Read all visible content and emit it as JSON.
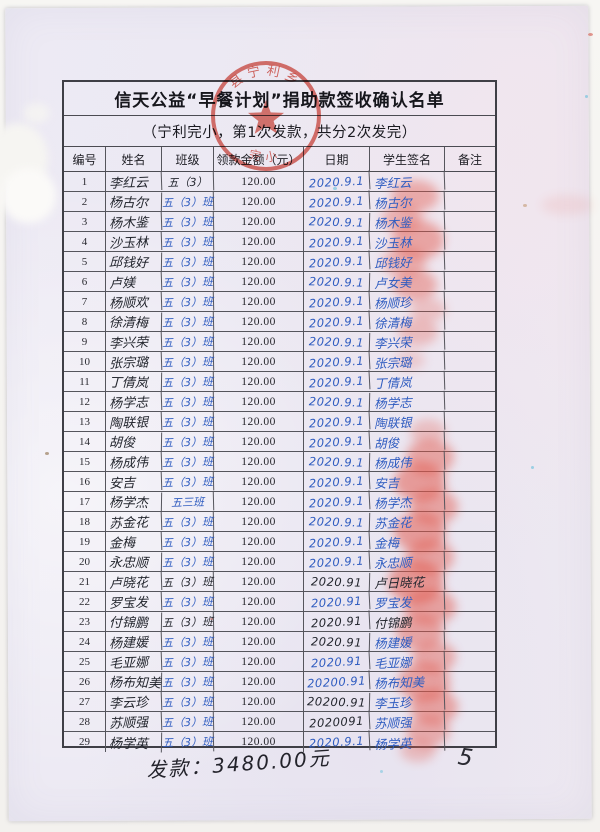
{
  "document": {
    "title": "信天公益“早餐计划”捐助款签收确认名单",
    "subtitle": "（宁利完小，第1次发款，共分2次发完）",
    "footer": {
      "total_handwritten": "发款：3480.00元",
      "page_number": "5"
    }
  },
  "stamp": {
    "arc_top": "县宁利乡",
    "arc_bottom": "完小"
  },
  "table": {
    "headers": [
      "编号",
      "姓名",
      "班级",
      "领款金额（元）",
      "日期",
      "学生签名",
      "备注"
    ],
    "rows": [
      {
        "no": "1",
        "name": "李红云",
        "cls": "五（3）",
        "amount": "120.00",
        "date": "2020.9.1",
        "sig": "李红云",
        "remark": "",
        "class_ink": "dark",
        "date_ink": "blue",
        "sig_ink": "blue"
      },
      {
        "no": "2",
        "name": "杨古尔",
        "cls": "五（3）班",
        "amount": "120.00",
        "date": "2020.9.1",
        "sig": "杨古尔",
        "remark": "",
        "class_ink": "blue",
        "date_ink": "blue",
        "sig_ink": "blue"
      },
      {
        "no": "3",
        "name": "杨木鉴",
        "cls": "五（3）班",
        "amount": "120.00",
        "date": "2020.9.1",
        "sig": "杨木鉴",
        "remark": "",
        "class_ink": "blue",
        "date_ink": "blue",
        "sig_ink": "blue"
      },
      {
        "no": "4",
        "name": "沙玉林",
        "cls": "五（3）班",
        "amount": "120.00",
        "date": "2020.9.1",
        "sig": "沙玉林",
        "remark": "",
        "class_ink": "blue",
        "date_ink": "blue",
        "sig_ink": "blue"
      },
      {
        "no": "5",
        "name": "邱钱好",
        "cls": "五（3）班",
        "amount": "120.00",
        "date": "2020.9.1",
        "sig": "邱钱好",
        "remark": "",
        "class_ink": "blue",
        "date_ink": "blue",
        "sig_ink": "blue"
      },
      {
        "no": "6",
        "name": "卢媄",
        "cls": "五（3）班",
        "amount": "120.00",
        "date": "2020.9.1",
        "sig": "卢女美",
        "remark": "",
        "class_ink": "blue",
        "date_ink": "blue",
        "sig_ink": "blue"
      },
      {
        "no": "7",
        "name": "杨顺欢",
        "cls": "五（3）班",
        "amount": "120.00",
        "date": "2020.9.1",
        "sig": "杨顺珍",
        "remark": "",
        "class_ink": "blue",
        "date_ink": "blue",
        "sig_ink": "blue"
      },
      {
        "no": "8",
        "name": "徐清梅",
        "cls": "五（3）班",
        "amount": "120.00",
        "date": "2020.9.1",
        "sig": "徐清梅",
        "remark": "",
        "class_ink": "blue",
        "date_ink": "blue",
        "sig_ink": "blue"
      },
      {
        "no": "9",
        "name": "李兴荣",
        "cls": "五（3）班",
        "amount": "120.00",
        "date": "2020.9.1",
        "sig": "李兴荣",
        "remark": "",
        "class_ink": "blue",
        "date_ink": "blue",
        "sig_ink": "blue"
      },
      {
        "no": "10",
        "name": "张宗璐",
        "cls": "五（3）班",
        "amount": "120.00",
        "date": "2020.9.1",
        "sig": "张宗璐",
        "remark": "",
        "class_ink": "blue",
        "date_ink": "blue",
        "sig_ink": "blue"
      },
      {
        "no": "11",
        "name": "丁倩岚",
        "cls": "五（3）班",
        "amount": "120.00",
        "date": "2020.9.1",
        "sig": "丁倩岚",
        "remark": "",
        "class_ink": "blue",
        "date_ink": "blue",
        "sig_ink": "blue"
      },
      {
        "no": "12",
        "name": "杨学志",
        "cls": "五（3）班",
        "amount": "120.00",
        "date": "2020.9.1",
        "sig": "杨学志",
        "remark": "",
        "class_ink": "blue",
        "date_ink": "blue",
        "sig_ink": "blue"
      },
      {
        "no": "13",
        "name": "陶联银",
        "cls": "五（3）班",
        "amount": "120.00",
        "date": "2020.9.1",
        "sig": "陶联银",
        "remark": "",
        "class_ink": "blue",
        "date_ink": "blue",
        "sig_ink": "blue"
      },
      {
        "no": "14",
        "name": "胡俊",
        "cls": "五（3）班",
        "amount": "120.00",
        "date": "2020.9.1",
        "sig": "胡俊",
        "remark": "",
        "class_ink": "blue",
        "date_ink": "blue",
        "sig_ink": "blue"
      },
      {
        "no": "15",
        "name": "杨成伟",
        "cls": "五（3）班",
        "amount": "120.00",
        "date": "2020.9.1",
        "sig": "杨成伟",
        "remark": "",
        "class_ink": "blue",
        "date_ink": "blue",
        "sig_ink": "blue"
      },
      {
        "no": "16",
        "name": "安吉",
        "cls": "五（3）班",
        "amount": "120.00",
        "date": "2020.9.1",
        "sig": "安吉",
        "remark": "",
        "class_ink": "blue",
        "date_ink": "blue",
        "sig_ink": "blue"
      },
      {
        "no": "17",
        "name": "杨学杰",
        "cls": "五三班",
        "amount": "120.00",
        "date": "2020.9.1",
        "sig": "杨学杰",
        "remark": "",
        "class_ink": "blue",
        "date_ink": "blue",
        "sig_ink": "blue"
      },
      {
        "no": "18",
        "name": "苏金花",
        "cls": "五（3）班",
        "amount": "120.00",
        "date": "2020.9.1",
        "sig": "苏金花",
        "remark": "",
        "class_ink": "blue",
        "date_ink": "blue",
        "sig_ink": "blue"
      },
      {
        "no": "19",
        "name": "金梅",
        "cls": "五（3）班",
        "amount": "120.00",
        "date": "2020.9.1",
        "sig": "金梅",
        "remark": "",
        "class_ink": "blue",
        "date_ink": "blue",
        "sig_ink": "blue"
      },
      {
        "no": "20",
        "name": "永忠顺",
        "cls": "五（3）班",
        "amount": "120.00",
        "date": "2020.9.1",
        "sig": "永忠顺",
        "remark": "",
        "class_ink": "blue",
        "date_ink": "blue",
        "sig_ink": "blue"
      },
      {
        "no": "21",
        "name": "卢晓花",
        "cls": "五（3）班",
        "amount": "120.00",
        "date": "2020.91",
        "sig": "卢日晓花",
        "remark": "",
        "class_ink": "dark",
        "date_ink": "dark",
        "sig_ink": "dark"
      },
      {
        "no": "22",
        "name": "罗宝发",
        "cls": "五（3）班",
        "amount": "120.00",
        "date": "2020.91",
        "sig": "罗宝发",
        "remark": "",
        "class_ink": "blue",
        "date_ink": "blue",
        "sig_ink": "blue"
      },
      {
        "no": "23",
        "name": "付锦鹏",
        "cls": "五（3）班",
        "amount": "120.00",
        "date": "2020.91",
        "sig": "付锦鹏",
        "remark": "",
        "class_ink": "dark",
        "date_ink": "dark",
        "sig_ink": "dark"
      },
      {
        "no": "24",
        "name": "杨建媛",
        "cls": "五（3）班",
        "amount": "120.00",
        "date": "2020.91",
        "sig": "杨建媛",
        "remark": "",
        "class_ink": "blue",
        "date_ink": "dark",
        "sig_ink": "blue"
      },
      {
        "no": "25",
        "name": "毛亚娜",
        "cls": "五（3）班",
        "amount": "120.00",
        "date": "2020.91",
        "sig": "毛亚娜",
        "remark": "",
        "class_ink": "blue",
        "date_ink": "blue",
        "sig_ink": "blue"
      },
      {
        "no": "26",
        "name": "杨布知美",
        "cls": "五（3）班",
        "amount": "120.00",
        "date": "20200.91",
        "sig": "杨布知美",
        "remark": "",
        "class_ink": "blue",
        "date_ink": "blue",
        "sig_ink": "blue"
      },
      {
        "no": "27",
        "name": "李云珍",
        "cls": "五（3）班",
        "amount": "120.00",
        "date": "20200.91",
        "sig": "李玉珍",
        "remark": "",
        "class_ink": "blue",
        "date_ink": "dark",
        "sig_ink": "blue"
      },
      {
        "no": "28",
        "name": "苏顺强",
        "cls": "五（3）班",
        "amount": "120.00",
        "date": "2020091",
        "sig": "苏顺强",
        "remark": "",
        "class_ink": "blue",
        "date_ink": "dark",
        "sig_ink": "blue"
      },
      {
        "no": "29",
        "name": "杨学英",
        "cls": "五（3）班",
        "amount": "120.00",
        "date": "2020.9.1",
        "sig": "杨学英",
        "remark": "",
        "class_ink": "blue",
        "date_ink": "blue",
        "sig_ink": "blue"
      }
    ]
  }
}
